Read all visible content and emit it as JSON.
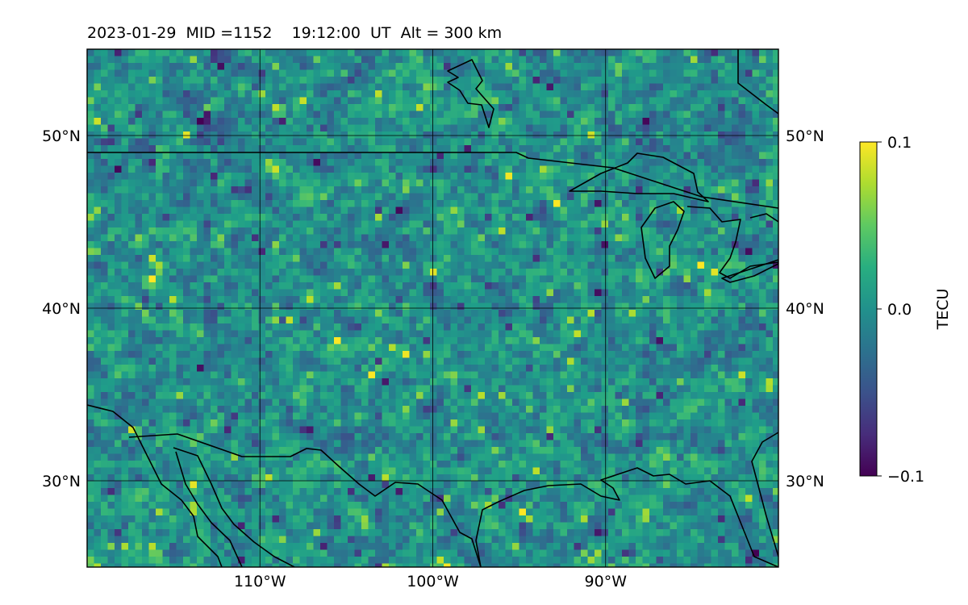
{
  "title": "2023-01-29  MID =1152    19:12:00  UT  Alt = 300 km",
  "chart_data": {
    "type": "heatmap",
    "title": "2023-01-29  MID =1152    19:12:00  UT  Alt = 300 km",
    "projection": "map (lon/lat)",
    "lon_range": [
      -120,
      -80
    ],
    "lat_range": [
      25,
      55
    ],
    "lon_ticks": [
      {
        "value": -110,
        "label": "110°W"
      },
      {
        "value": -100,
        "label": "100°W"
      },
      {
        "value": -90,
        "label": "90°W"
      }
    ],
    "lat_ticks": [
      {
        "value": 30,
        "label": "30°N"
      },
      {
        "value": 40,
        "label": "40°N"
      },
      {
        "value": 50,
        "label": "50°N"
      }
    ],
    "grid": true,
    "colormap": "viridis",
    "colorbar": {
      "label": "TECU",
      "min": -0.1,
      "max": 0.1,
      "ticks": [
        {
          "value": 0.1,
          "label": "0.1"
        },
        {
          "value": 0.0,
          "label": "0.0"
        },
        {
          "value": -0.1,
          "label": "−0.1"
        }
      ],
      "placement": "right"
    },
    "field_description": "Differential TEC perturbation field, mostly within ±0.05 TECU with scattered yellow (+0.1) maxima in northwest and southwest and dark (−0.1) minima scattered throughout; coastlines and borders overlaid in black"
  }
}
